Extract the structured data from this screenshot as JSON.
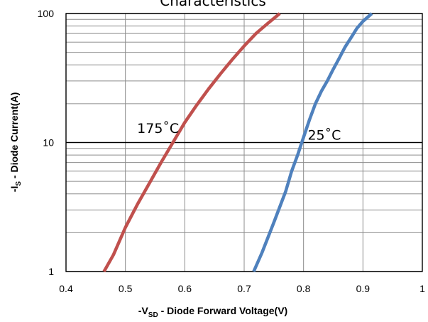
{
  "chart_data": {
    "type": "line",
    "title": "Characteristics",
    "xlabel": {
      "prefix": "-V",
      "sub": "SD",
      "rest": " - Diode Forward Voltage(V)"
    },
    "ylabel": {
      "prefix": "-I",
      "sub": "S",
      "rest": " - Diode Current(A)"
    },
    "xlim": [
      0.4,
      1.0
    ],
    "ylim": [
      1,
      100
    ],
    "yscale": "log",
    "grid": true,
    "x_ticks": [
      "0.4",
      "0.5",
      "0.6",
      "0.7",
      "0.8",
      "0.9",
      "1"
    ],
    "y_ticks": [
      "1",
      "10",
      "100"
    ],
    "series": [
      {
        "name": "175°C",
        "color": "#c0504d",
        "points": [
          [
            0.464,
            1
          ],
          [
            0.48,
            1.35
          ],
          [
            0.5,
            2.2
          ],
          [
            0.52,
            3.3
          ],
          [
            0.54,
            4.8
          ],
          [
            0.56,
            7
          ],
          [
            0.58,
            10
          ],
          [
            0.6,
            14.3
          ],
          [
            0.62,
            19.5
          ],
          [
            0.64,
            26
          ],
          [
            0.66,
            34
          ],
          [
            0.68,
            44
          ],
          [
            0.7,
            56
          ],
          [
            0.72,
            70
          ],
          [
            0.74,
            84
          ],
          [
            0.76,
            100
          ]
        ]
      },
      {
        "name": "25°C",
        "color": "#4f81bd",
        "points": [
          [
            0.716,
            1
          ],
          [
            0.73,
            1.4
          ],
          [
            0.75,
            2.4
          ],
          [
            0.77,
            4.2
          ],
          [
            0.78,
            6
          ],
          [
            0.79,
            8
          ],
          [
            0.8,
            11
          ],
          [
            0.81,
            15
          ],
          [
            0.82,
            20
          ],
          [
            0.83,
            25
          ],
          [
            0.84,
            30
          ],
          [
            0.85,
            37
          ],
          [
            0.86,
            45
          ],
          [
            0.87,
            55
          ],
          [
            0.88,
            65
          ],
          [
            0.89,
            77
          ],
          [
            0.9,
            87
          ],
          [
            0.915,
            100
          ]
        ]
      }
    ],
    "annotations": [
      {
        "text": "175˚C",
        "x": 0.555,
        "y": 13
      },
      {
        "text": "25˚C",
        "x": 0.835,
        "y": 11.5
      }
    ]
  }
}
